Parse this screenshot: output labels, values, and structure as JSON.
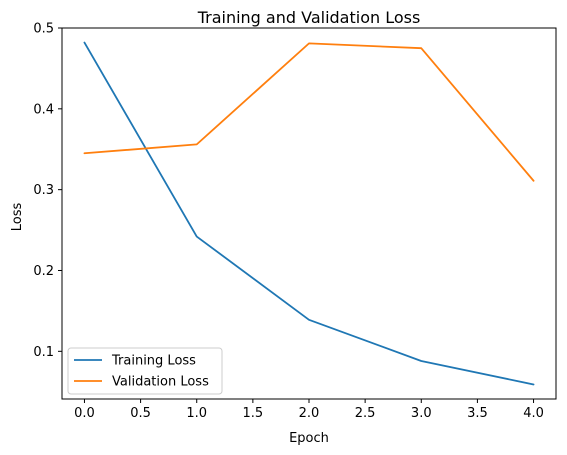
{
  "chart_data": {
    "type": "line",
    "title": "Training and Validation Loss",
    "xlabel": "Epoch",
    "ylabel": "Loss",
    "x": [
      0,
      1,
      2,
      3,
      4
    ],
    "xlim": [
      -0.2,
      4.2
    ],
    "ylim": [
      0.041,
      0.5
    ],
    "xticks": [
      0.0,
      0.5,
      1.0,
      1.5,
      2.0,
      2.5,
      3.0,
      3.5,
      4.0
    ],
    "xtick_labels": [
      "0.0",
      "0.5",
      "1.0",
      "1.5",
      "2.0",
      "2.5",
      "3.0",
      "3.5",
      "4.0"
    ],
    "yticks": [
      0.1,
      0.2,
      0.3,
      0.4,
      0.5
    ],
    "ytick_labels": [
      "0.1",
      "0.2",
      "0.3",
      "0.4",
      "0.5"
    ],
    "grid": false,
    "legend_position": "lower-left",
    "series": [
      {
        "name": "Training Loss",
        "color": "#1f77b4",
        "values": [
          0.482,
          0.242,
          0.139,
          0.088,
          0.059
        ]
      },
      {
        "name": "Validation Loss",
        "color": "#ff7f0e",
        "values": [
          0.345,
          0.356,
          0.481,
          0.475,
          0.311
        ]
      }
    ]
  }
}
